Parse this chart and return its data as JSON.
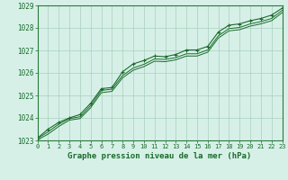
{
  "title": "Graphe pression niveau de la mer (hPa)",
  "background_color": "#d6f0e8",
  "plot_bg_color": "#d6f0e8",
  "grid_color": "#b0d4c4",
  "line_color": "#1a6b2a",
  "marker_color": "#1a6b2a",
  "xlim": [
    0,
    23
  ],
  "ylim": [
    1023,
    1029
  ],
  "yticks": [
    1023,
    1024,
    1025,
    1026,
    1027,
    1028,
    1029
  ],
  "xticks": [
    0,
    1,
    2,
    3,
    4,
    5,
    6,
    7,
    8,
    9,
    10,
    11,
    12,
    13,
    14,
    15,
    16,
    17,
    18,
    19,
    20,
    21,
    22,
    23
  ],
  "s1_y": [
    1023.1,
    1023.5,
    1023.8,
    1024.0,
    1024.15,
    1024.65,
    1025.3,
    1025.35,
    1026.05,
    1026.4,
    1026.55,
    1026.75,
    1026.72,
    1026.82,
    1027.02,
    1027.02,
    1027.18,
    1027.82,
    1028.12,
    1028.18,
    1028.32,
    1028.42,
    1028.57,
    1028.88
  ],
  "s2_y": [
    1023.08,
    1023.38,
    1023.72,
    1023.97,
    1024.05,
    1024.55,
    1025.22,
    1025.28,
    1025.88,
    1026.22,
    1026.38,
    1026.62,
    1026.6,
    1026.68,
    1026.85,
    1026.85,
    1027.02,
    1027.65,
    1027.97,
    1028.02,
    1028.18,
    1028.28,
    1028.42,
    1028.78
  ],
  "s3_y": [
    1023.02,
    1023.28,
    1023.62,
    1023.9,
    1023.97,
    1024.45,
    1025.12,
    1025.18,
    1025.78,
    1026.12,
    1026.28,
    1026.52,
    1026.5,
    1026.58,
    1026.75,
    1026.75,
    1026.92,
    1027.55,
    1027.87,
    1027.92,
    1028.08,
    1028.18,
    1028.32,
    1028.68
  ]
}
